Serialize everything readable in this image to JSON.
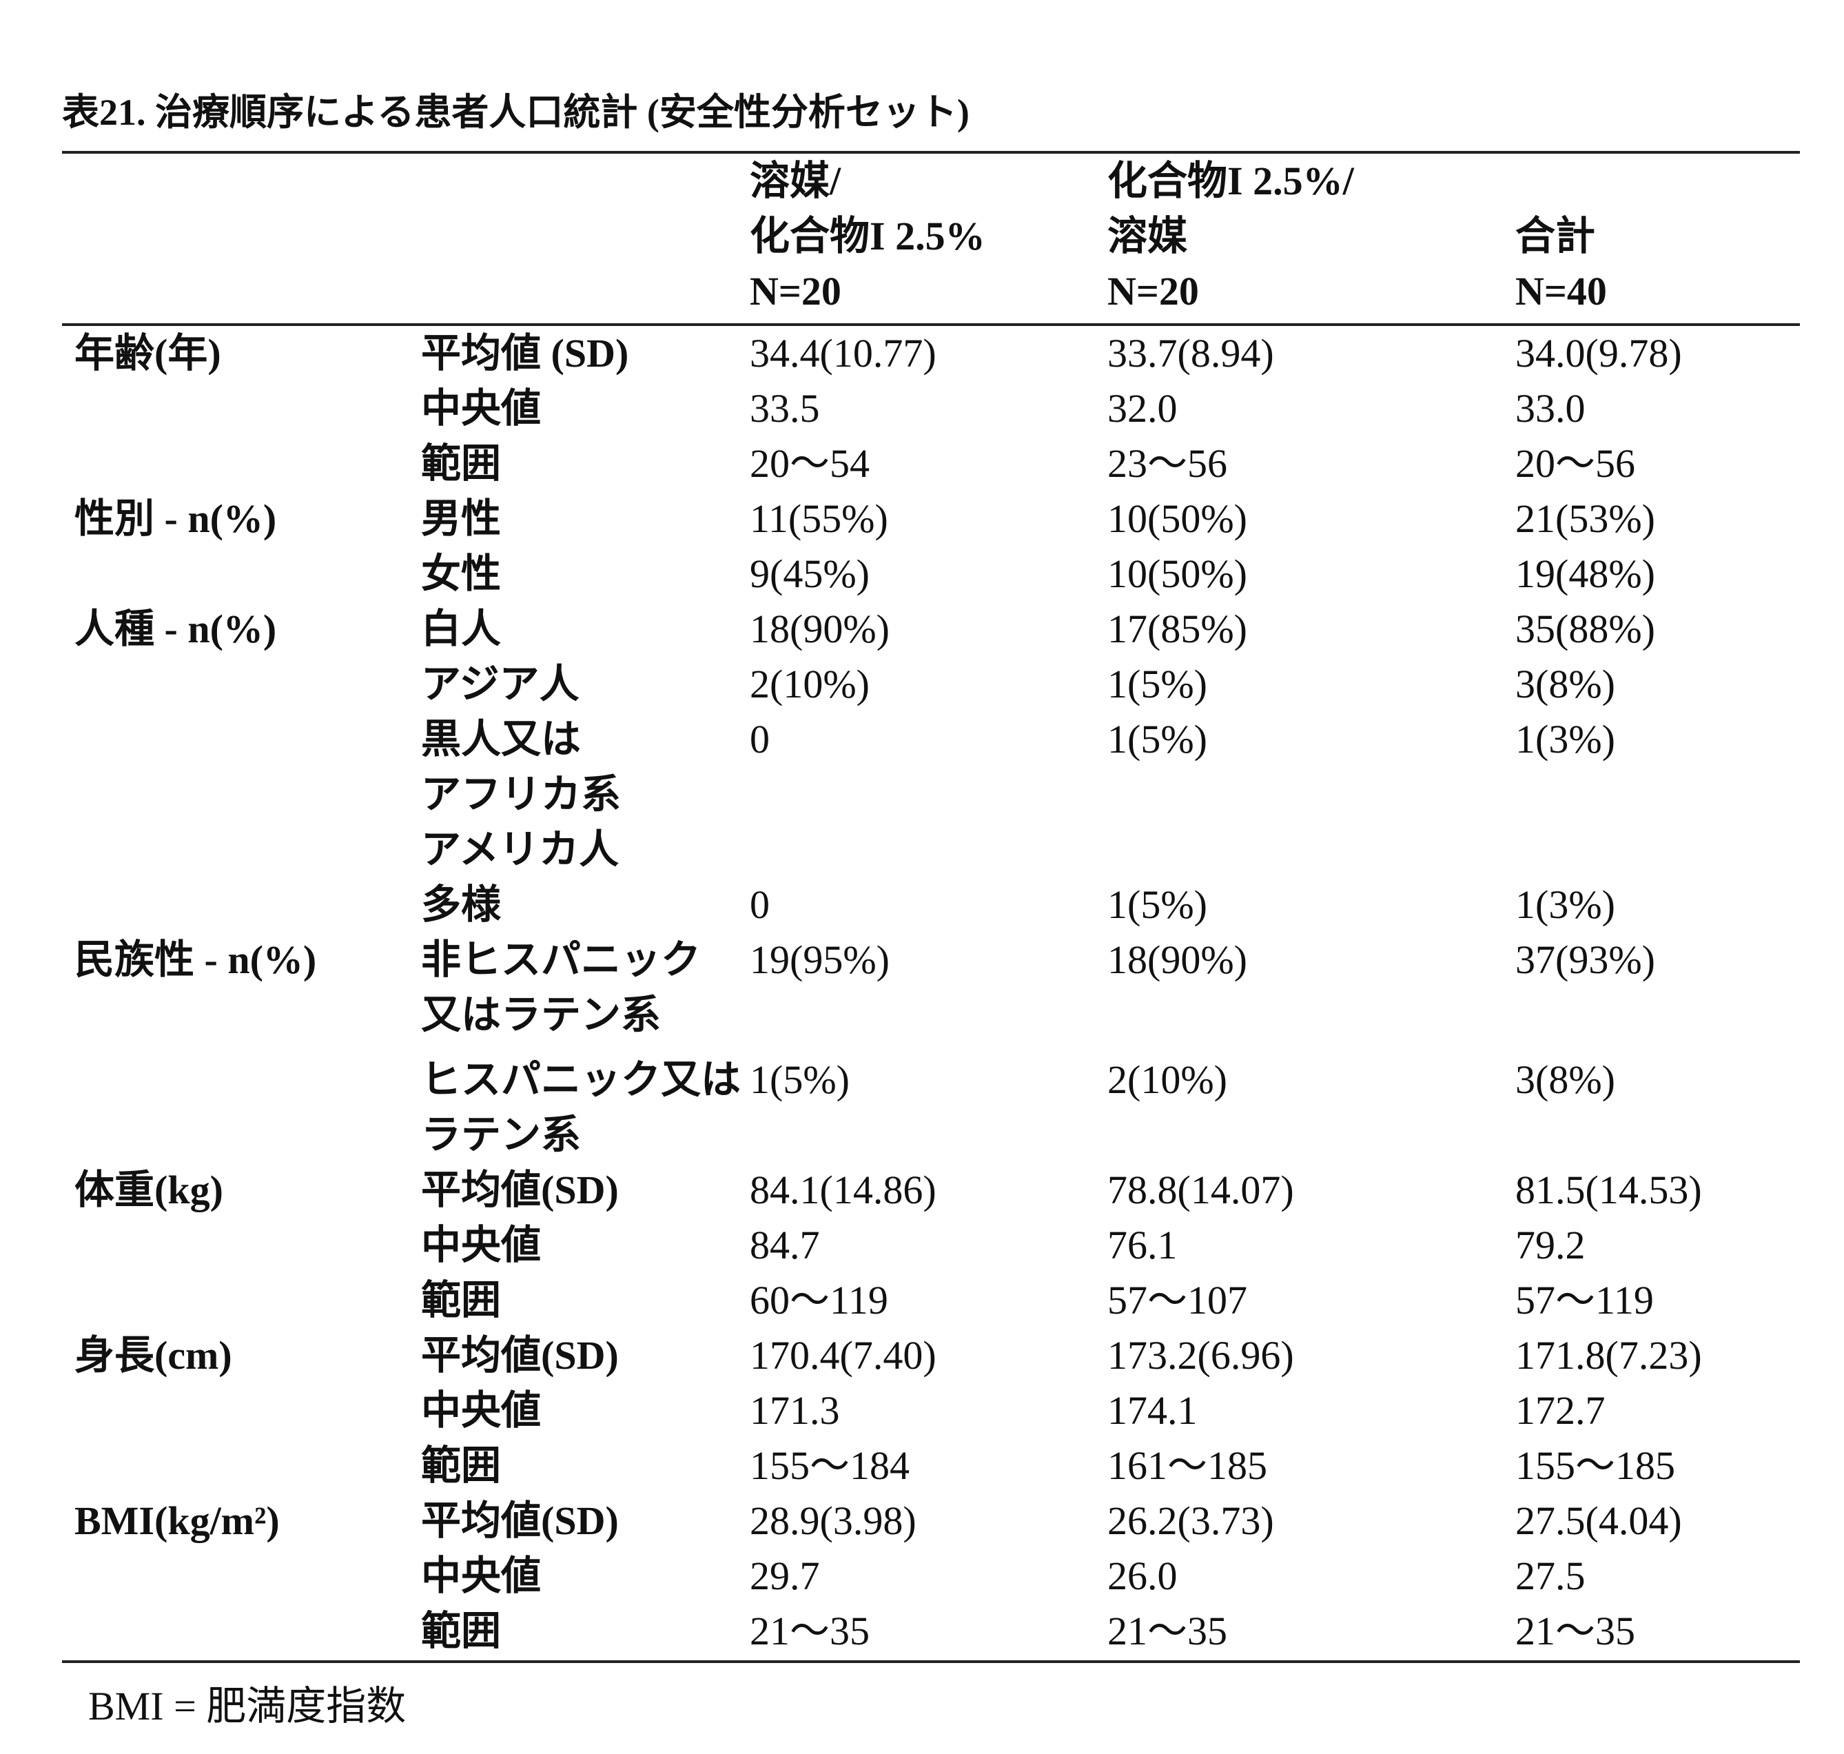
{
  "title": "表21. 治療順序による患者人口統計 (安全性分析セット)",
  "table": {
    "header": [
      "溶媒/\n化合物I 2.5%\nN=20",
      "化合物I 2.5%/\n溶媒\nN=20",
      "合計\nN=40"
    ],
    "rows": [
      {
        "group": "年齢(年)",
        "label": "平均値 (SD)",
        "values": [
          "34.4(10.77)",
          "33.7(8.94)",
          "34.0(9.78)"
        ]
      },
      {
        "label": "中央値",
        "values": [
          "33.5",
          "32.0",
          "33.0"
        ]
      },
      {
        "label": "範囲",
        "values": [
          "20〜54",
          "23〜56",
          "20〜56"
        ]
      },
      {
        "group": "性別 - n(%)",
        "label": "男性",
        "values": [
          "11(55%)",
          "10(50%)",
          "21(53%)"
        ]
      },
      {
        "label": "女性",
        "values": [
          "9(45%)",
          "10(50%)",
          "19(48%)"
        ]
      },
      {
        "group": "人種 - n(%)",
        "label": "白人",
        "values": [
          "18(90%)",
          "17(85%)",
          "35(88%)"
        ]
      },
      {
        "label": "アジア人",
        "values": [
          "2(10%)",
          "1(5%)",
          "3(8%)"
        ]
      },
      {
        "label": "黒人又は\nアフリカ系\nアメリカ人",
        "values": [
          "0",
          "1(5%)",
          "1(3%)"
        ]
      },
      {
        "label": "多様",
        "values": [
          "0",
          "1(5%)",
          "1(3%)"
        ]
      },
      {
        "group": "民族性 - n(%)",
        "label": "非ヒスパニック\n又はラテン系",
        "values": [
          "19(95%)",
          "18(90%)",
          "37(93%)"
        ]
      },
      {
        "label": "ヒスパニック又は\nラテン系",
        "values": [
          "1(5%)",
          "2(10%)",
          "3(8%)"
        ]
      },
      {
        "group": "体重(kg)",
        "label": "平均値(SD)",
        "values": [
          "84.1(14.86)",
          "78.8(14.07)",
          "81.5(14.53)"
        ]
      },
      {
        "label": "中央値",
        "values": [
          "84.7",
          "76.1",
          "79.2"
        ]
      },
      {
        "label": "範囲",
        "values": [
          "60〜119",
          "57〜107",
          "57〜119"
        ]
      },
      {
        "group": "身長(cm)",
        "label": "平均値(SD)",
        "values": [
          "170.4(7.40)",
          "173.2(6.96)",
          "171.8(7.23)"
        ]
      },
      {
        "label": "中央値",
        "values": [
          "171.3",
          "174.1",
          "172.7"
        ]
      },
      {
        "label": "範囲",
        "values": [
          "155〜184",
          "161〜185",
          "155〜185"
        ]
      },
      {
        "group": "BMI(kg/m²)",
        "label": "平均値(SD)",
        "values": [
          "28.9(3.98)",
          "26.2(3.73)",
          "27.5(4.04)"
        ]
      },
      {
        "label": "中央値",
        "values": [
          "29.7",
          "26.0",
          "27.5"
        ]
      },
      {
        "label": "範囲",
        "values": [
          "21〜35",
          "21〜35",
          "21〜35"
        ]
      }
    ]
  },
  "footnote": "BMI = 肥満度指数"
}
